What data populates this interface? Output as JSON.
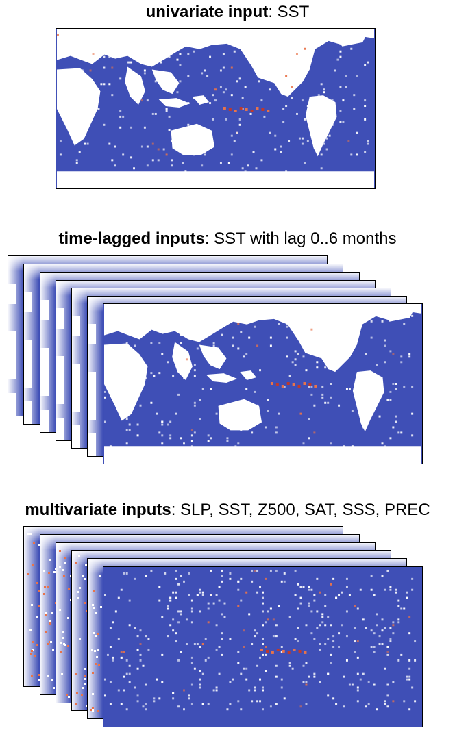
{
  "sections": [
    {
      "bold": "univariate input",
      "rest": ": SST"
    },
    {
      "bold": "time-lagged inputs",
      "rest": ": SST with lag 0..6 months"
    },
    {
      "bold": "multivariate inputs",
      "rest": ": SLP, SST, Z500, SAT, SSS, PREC"
    }
  ],
  "colors": {
    "ocean": "#3f4fb6",
    "land": "#ffffff",
    "anomaly_warm": "#e8734a",
    "anomaly_hot": "#c0392b",
    "speckle": "#ffffff"
  }
}
